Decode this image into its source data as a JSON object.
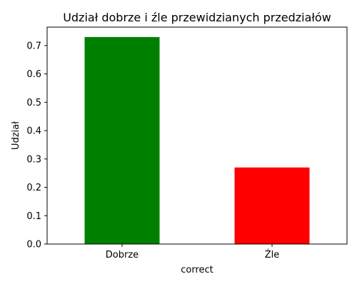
{
  "chart_data": {
    "type": "bar",
    "title": "Udział dobrze i źle przewidzianych przedziałów",
    "xlabel": "correct",
    "ylabel": "Udział",
    "categories": [
      "Dobrze",
      "Źle"
    ],
    "values": [
      0.73,
      0.27
    ],
    "colors": [
      "#008000",
      "#ff0000"
    ],
    "ylim": [
      0,
      0.765
    ],
    "yticks": [
      0.0,
      0.1,
      0.2,
      0.3,
      0.4,
      0.5,
      0.6,
      0.7
    ],
    "ytick_labels": [
      "0.0",
      "0.1",
      "0.2",
      "0.3",
      "0.4",
      "0.5",
      "0.6",
      "0.7"
    ],
    "grid": false,
    "legend": "none"
  }
}
